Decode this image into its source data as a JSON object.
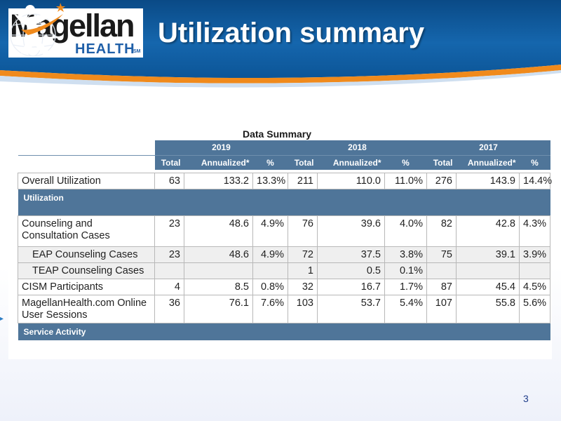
{
  "slide": {
    "title": "Utilization summary",
    "page_number": "3"
  },
  "logo": {
    "main": "Magellan",
    "sub": "HEALTH",
    "sm": "SM"
  },
  "table": {
    "caption": "Data Summary",
    "years": [
      "2019",
      "2018",
      "2017"
    ],
    "sub_headers": [
      "Total",
      "Annualized*",
      "%"
    ],
    "rows": [
      {
        "label": "Overall Utilization",
        "cells": [
          "63",
          "133.2",
          "13.3%",
          "211",
          "110.0",
          "11.0%",
          "276",
          "143.9",
          "14.4%"
        ]
      },
      {
        "band": "Utilization"
      },
      {
        "label": "Counseling and Consultation Cases",
        "cells": [
          "23",
          "48.6",
          "4.9%",
          "76",
          "39.6",
          "4.0%",
          "82",
          "42.8",
          "4.3%"
        ]
      },
      {
        "label": "EAP Counseling Cases",
        "cells": [
          "23",
          "48.6",
          "4.9%",
          "72",
          "37.5",
          "3.8%",
          "75",
          "39.1",
          "3.9%"
        ]
      },
      {
        "label": "TEAP Counseling Cases",
        "cells": [
          "",
          "",
          "",
          "1",
          "0.5",
          "0.1%",
          "",
          "",
          ""
        ]
      },
      {
        "label": "CISM Participants",
        "cells": [
          "4",
          "8.5",
          "0.8%",
          "32",
          "16.7",
          "1.7%",
          "87",
          "45.4",
          "4.5%"
        ]
      },
      {
        "label": "MagellanHealth.com Online User Sessions",
        "cells": [
          "36",
          "76.1",
          "7.6%",
          "103",
          "53.7",
          "5.4%",
          "107",
          "55.8",
          "5.6%"
        ]
      },
      {
        "band": "Service Activity"
      }
    ]
  },
  "colors": {
    "header_blue": "#0d5796",
    "accent_orange": "#f08a1c",
    "table_header": "#4f7599",
    "page_number": "#1f3d8a"
  }
}
